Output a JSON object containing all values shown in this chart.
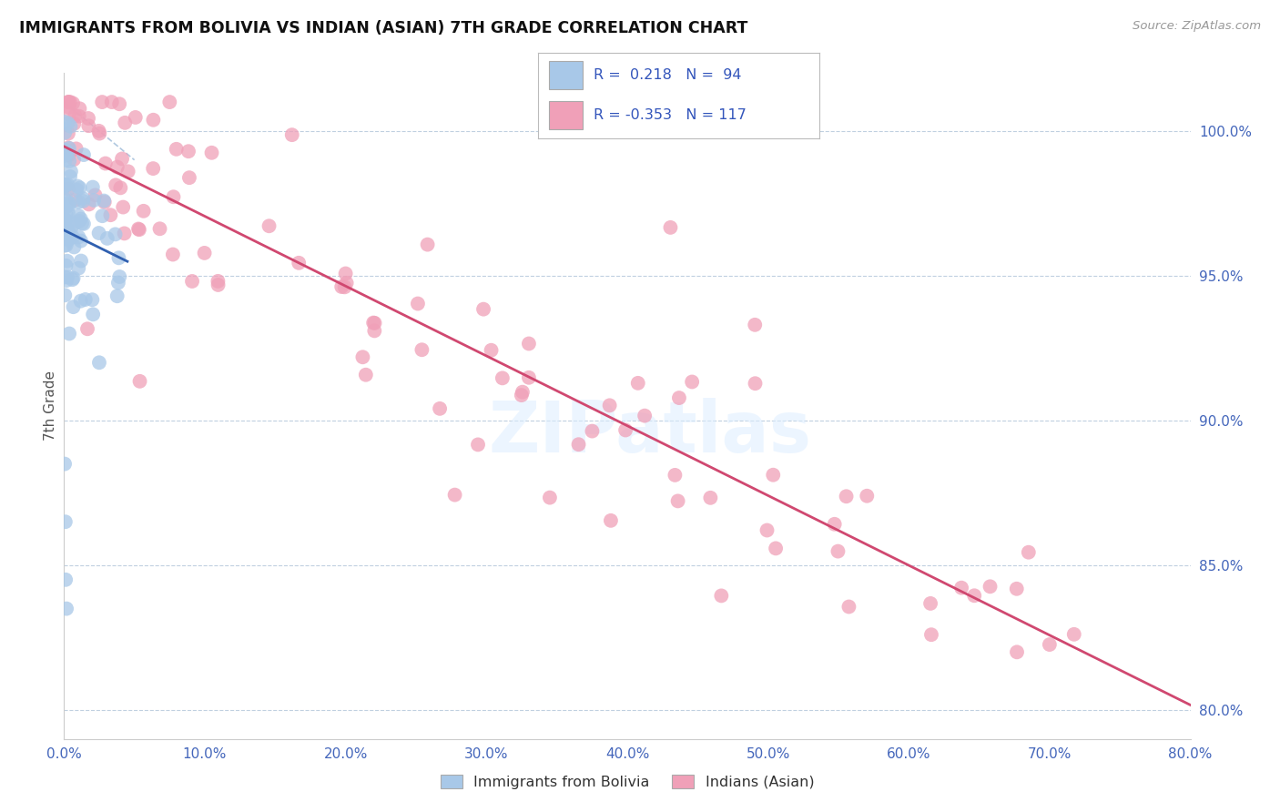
{
  "title": "IMMIGRANTS FROM BOLIVIA VS INDIAN (ASIAN) 7TH GRADE CORRELATION CHART",
  "source_text": "Source: ZipAtlas.com",
  "ylabel": "7th Grade",
  "x_ticks": [
    0.0,
    10.0,
    20.0,
    30.0,
    40.0,
    50.0,
    60.0,
    70.0,
    80.0
  ],
  "x_tick_labels": [
    "0.0%",
    "10.0%",
    "20.0%",
    "30.0%",
    "40.0%",
    "50.0%",
    "60.0%",
    "70.0%",
    "80.0%"
  ],
  "y_right_ticks": [
    80.0,
    85.0,
    90.0,
    95.0,
    100.0
  ],
  "y_right_tick_labels": [
    "80.0%",
    "85.0%",
    "90.0%",
    "95.0%",
    "100.0%"
  ],
  "xlim": [
    0.0,
    80.0
  ],
  "ylim": [
    79.0,
    102.0
  ],
  "watermark": "ZIPatlas",
  "bolivia_color": "#a8c8e8",
  "indian_color": "#f0a0b8",
  "bolivia_trend_color": "#3060b0",
  "indian_trend_color": "#d04870",
  "background_color": "#ffffff",
  "grid_color": "#c0d0e0",
  "bolivia_r": 0.218,
  "bolivia_n": 94,
  "indian_r": -0.353,
  "indian_n": 117
}
